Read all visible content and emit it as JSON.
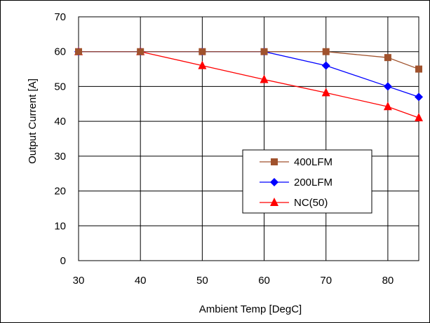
{
  "chart_data": {
    "type": "line",
    "title": "",
    "xlabel": "Ambient Temp [DegC]",
    "ylabel": "Output Current [A]",
    "xlim": [
      30,
      85
    ],
    "ylim": [
      0,
      70
    ],
    "xticks": [
      30,
      40,
      50,
      60,
      70,
      80
    ],
    "yticks": [
      0,
      10,
      20,
      30,
      40,
      50,
      60,
      70
    ],
    "grid": true,
    "legend_position": "center-right",
    "series": [
      {
        "name": "400LFM",
        "color": "#A0522D",
        "marker": "square",
        "x": [
          30,
          40,
          50,
          60,
          70,
          80,
          85
        ],
        "y": [
          60,
          60,
          60,
          60,
          60,
          58.3,
          55
        ]
      },
      {
        "name": "200LFM",
        "color": "#0000FF",
        "marker": "diamond",
        "x": [
          30,
          40,
          50,
          60,
          70,
          80,
          85
        ],
        "y": [
          60,
          60,
          60,
          60,
          56,
          50,
          47
        ]
      },
      {
        "name": "NC(50)",
        "color": "#FF0000",
        "marker": "triangle",
        "x": [
          30,
          40,
          50,
          60,
          70,
          80,
          85
        ],
        "y": [
          60,
          60,
          56,
          52,
          48.2,
          44.2,
          41
        ]
      }
    ]
  }
}
